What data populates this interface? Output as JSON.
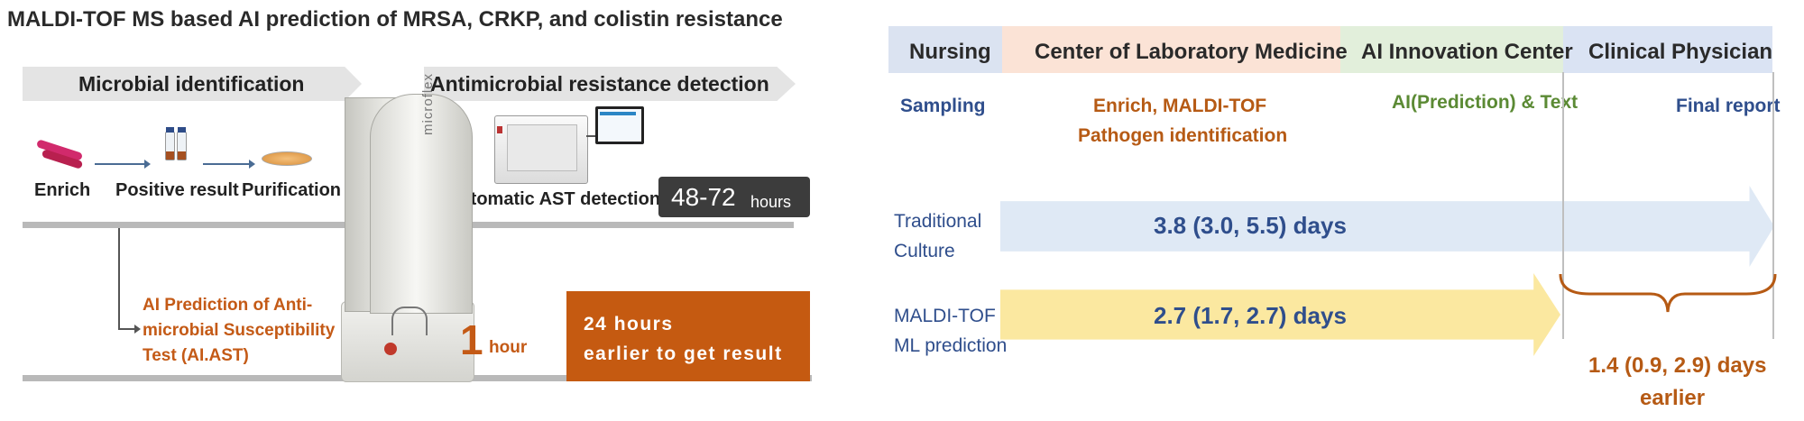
{
  "left": {
    "title": "MALDI-TOF MS based AI prediction of MRSA, CRKP, and colistin resistance",
    "band_identification": "Microbial identification",
    "band_resistance": "Antimicrobial resistance detection",
    "steps": {
      "enrich": "Enrich",
      "positive": "Positive result",
      "purification": "Purification"
    },
    "ast": {
      "label": "Automatic AST detection",
      "time_value": "48-72",
      "time_unit": "hours"
    },
    "ai_prediction": {
      "line1": "AI Prediction of Anti-",
      "line2": "microbial Susceptibility",
      "line3": "Test (AI.AST)"
    },
    "ai_time": {
      "value": "1",
      "unit": "hour"
    },
    "earlier_box": {
      "line1": "24 hours",
      "line2": "earlier to get result"
    },
    "machine_brand": "microflex",
    "icons": [
      "blood-culture-tube-icon",
      "culture-bottles-icon",
      "petri-dish-icon",
      "ast-instrument-icon",
      "maldi-tof-instrument-icon"
    ],
    "colors": {
      "orange": "#c55a11",
      "dark_box": "#3c3c3c",
      "band_gray": "#e4e4e4"
    }
  },
  "right": {
    "columns": [
      {
        "label": "Nursing",
        "color": "#dbe3f1"
      },
      {
        "label": "Center of Laboratory Medicine",
        "color": "#fbe3d6"
      },
      {
        "label": "AI Innovation Center",
        "color": "#e2efdb"
      },
      {
        "label": "Clinical Physician",
        "color": "#dae3f3"
      }
    ],
    "activities": {
      "nursing": "Sampling",
      "lab_line1": "Enrich, MALDI-TOF",
      "lab_line2": "Pathogen identification",
      "ai": "AI(Prediction) & Text",
      "physician": "Final report"
    },
    "traditional": {
      "label_line1": "Traditional",
      "label_line2": "Culture",
      "value": "3.8 (3.0, 5.5) days",
      "color": "#dfe9f5"
    },
    "maldi": {
      "label_line1": "MALDI-TOF",
      "label_line2": "ML prediction",
      "value": "2.7 (1.7, 2.7) days",
      "color": "#fbe8a0"
    },
    "saved": {
      "line1": "1.4 (0.9, 2.9) days",
      "line2": "earlier"
    }
  }
}
